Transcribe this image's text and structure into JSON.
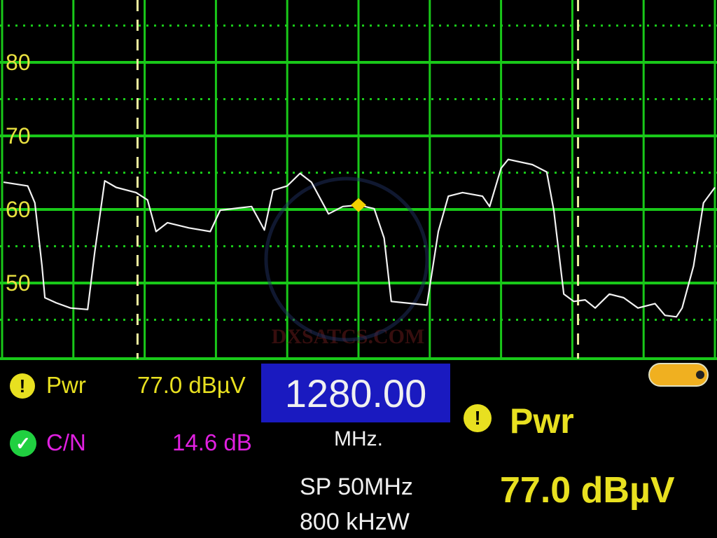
{
  "chart_data": {
    "type": "line",
    "title": "",
    "xlabel": "",
    "ylabel": "",
    "xlim": [
      1255,
      1305
    ],
    "ylim": [
      40,
      90
    ],
    "y_ticks": [
      50,
      60,
      70,
      80,
      90
    ],
    "grid": true,
    "dashed_markers_mhz": [
      1264.5,
      1295.4
    ],
    "marker": {
      "x": 1280.0,
      "y": 60.6
    },
    "series": [
      {
        "x": [
          1255.1,
          1256.8,
          1257.3,
          1257.8,
          1258.0,
          1258.8,
          1259.8,
          1261.0,
          1261.5,
          1262.2,
          1263.0,
          1264.4,
          1265.2,
          1265.8,
          1266.6,
          1268.1,
          1269.6,
          1270.3,
          1271.6,
          1272.5,
          1272.9,
          1273.4,
          1274.0,
          1275.0,
          1275.9,
          1276.7,
          1277.9,
          1278.9,
          1280.0,
          1281.1,
          1281.8,
          1282.3,
          1283.3,
          1284.8,
          1285.6,
          1286.3,
          1287.3,
          1288.7,
          1289.2,
          1290.0,
          1290.5,
          1292.2,
          1293.2,
          1293.7,
          1294.4,
          1295.1,
          1295.9,
          1296.6,
          1297.6,
          1298.6,
          1299.6,
          1300.8,
          1301.5,
          1302.3,
          1302.7,
          1303.5,
          1304.2,
          1305.0
        ],
        "y": [
          63.7,
          63.2,
          60.9,
          52.3,
          48.0,
          47.3,
          46.6,
          46.4,
          54.2,
          63.9,
          63.0,
          62.3,
          61.3,
          57.0,
          58.2,
          57.5,
          57.0,
          59.9,
          60.2,
          60.4,
          59.0,
          57.2,
          62.6,
          63.2,
          64.9,
          63.7,
          59.4,
          60.4,
          60.6,
          60.1,
          56.1,
          47.5,
          47.3,
          47.0,
          57.0,
          61.8,
          62.3,
          61.8,
          60.4,
          65.6,
          66.8,
          66.1,
          65.1,
          59.9,
          48.5,
          47.5,
          47.7,
          46.6,
          48.5,
          48.0,
          46.6,
          47.2,
          45.6,
          45.4,
          46.6,
          52.3,
          60.9,
          63.0
        ]
      }
    ],
    "colors": {
      "grid": "#19c819",
      "trace": "#f2f2f2",
      "tick_label": "#e8e040",
      "marker": "#f0d000",
      "dashed": "#f0f0a0"
    }
  },
  "watermark": "DXSATCS.COM",
  "readouts": {
    "pwr_label": "Pwr",
    "pwr_value": "77.0 dBµV",
    "pwr_status_icon": "warning-icon",
    "cn_label": "C/N",
    "cn_value": "14.6 dB",
    "cn_status_icon": "check-icon",
    "frequency": "1280.00",
    "frequency_unit": "MHz.",
    "span": "SP 50MHz",
    "rbw": "800 kHzW",
    "big_pwr_label": "Pwr",
    "big_pwr_value": "77.0 dBµV",
    "battery_level": 1.0
  },
  "colors": {
    "yellow": "#e8e020",
    "magenta": "#e020e0",
    "white": "#f0f0f0",
    "freq_box": "#1a1ac0",
    "battery": "#f0b020"
  }
}
